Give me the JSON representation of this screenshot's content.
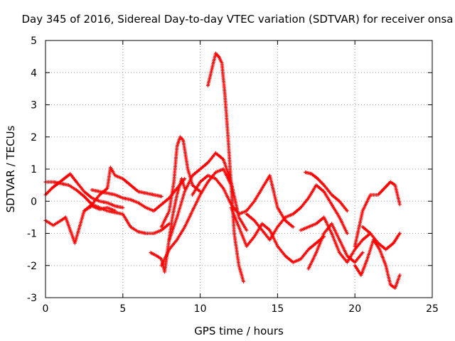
{
  "chart_data": {
    "type": "scatter",
    "title": "Day 345 of 2016, Sidereal Day-to-day VTEC variation (SDTVAR) for receiver onsa",
    "xlabel": "GPS time / hours",
    "ylabel": "SDTVAR / TECUs",
    "xlim": [
      0,
      25
    ],
    "ylim": [
      -3,
      5
    ],
    "xticks": [
      0,
      5,
      10,
      15,
      20,
      25
    ],
    "yticks": [
      -3,
      -2,
      -1,
      0,
      1,
      2,
      3,
      4,
      5
    ],
    "grid": true,
    "marker": "+",
    "series_color": "#ff0000",
    "series": [
      {
        "name": "s1",
        "x": [
          0.0,
          0.5,
          1.0,
          1.5,
          2.0,
          2.5,
          3.0,
          3.5,
          4.0,
          4.5,
          5.0,
          5.5,
          6.0,
          6.5,
          7.0,
          7.5,
          8.0
        ],
        "y": [
          0.6,
          0.6,
          0.55,
          0.5,
          0.35,
          0.15,
          -0.1,
          -0.2,
          -0.3,
          -0.35,
          -0.4,
          -0.8,
          -0.95,
          -1.0,
          -1.0,
          -0.9,
          -0.7
        ]
      },
      {
        "name": "s2",
        "x": [
          0.0,
          0.4,
          0.8,
          1.2,
          1.6,
          2.0,
          2.5,
          3.0,
          3.5,
          4.0,
          4.5,
          5.0
        ],
        "y": [
          0.2,
          0.4,
          0.55,
          0.7,
          0.85,
          0.6,
          0.3,
          0.1,
          0.0,
          -0.05,
          -0.15,
          -0.2
        ]
      },
      {
        "name": "s3",
        "x": [
          0.0,
          0.5,
          1.0,
          1.3,
          1.6,
          1.9,
          2.2,
          2.5,
          3.0,
          3.5,
          4.0,
          4.5
        ],
        "y": [
          -0.6,
          -0.75,
          -0.6,
          -0.5,
          -0.9,
          -1.3,
          -0.8,
          -0.3,
          -0.15,
          -0.25,
          -0.2,
          -0.3
        ]
      },
      {
        "name": "s4",
        "x": [
          2.5,
          3.0,
          3.5,
          4.0,
          4.2,
          4.5,
          5.0,
          5.5,
          6.0,
          6.5,
          7.0,
          7.5
        ],
        "y": [
          -0.3,
          -0.1,
          0.2,
          0.4,
          1.05,
          0.8,
          0.7,
          0.5,
          0.3,
          0.25,
          0.2,
          0.15
        ]
      },
      {
        "name": "s5",
        "x": [
          3.0,
          3.5,
          4.0,
          4.5,
          5.0,
          5.5,
          6.0,
          6.5,
          7.0,
          7.5,
          8.0,
          8.5,
          9.0
        ],
        "y": [
          0.35,
          0.3,
          0.25,
          0.2,
          0.1,
          0.05,
          -0.05,
          -0.2,
          -0.3,
          -0.1,
          0.1,
          0.4,
          0.7
        ]
      },
      {
        "name": "s6",
        "x": [
          6.8,
          7.2,
          7.5,
          7.7,
          7.9,
          8.2,
          8.5,
          8.8,
          9.0
        ],
        "y": [
          -1.6,
          -1.7,
          -1.8,
          -2.2,
          -1.5,
          -0.5,
          0.2,
          0.7,
          0.4
        ]
      },
      {
        "name": "s7",
        "x": [
          7.5,
          8.0,
          8.3,
          8.5,
          8.7,
          8.9,
          9.2,
          9.5,
          10.0
        ],
        "y": [
          -0.8,
          -0.3,
          0.6,
          1.7,
          2.0,
          1.9,
          1.0,
          0.5,
          0.3
        ]
      },
      {
        "name": "s8",
        "x": [
          7.5,
          8.0,
          8.5,
          9.0,
          9.5,
          10.0,
          10.5,
          11.0,
          11.5,
          12.0
        ],
        "y": [
          -2.0,
          -1.5,
          -1.2,
          -0.8,
          -0.3,
          0.2,
          0.6,
          0.9,
          1.0,
          0.5
        ]
      },
      {
        "name": "s9",
        "x": [
          8.0,
          8.5,
          9.0,
          9.5,
          10.0,
          10.5,
          11.0,
          11.5,
          12.0,
          12.5,
          13.0
        ],
        "y": [
          -1.2,
          -0.5,
          0.3,
          0.8,
          1.0,
          1.2,
          1.5,
          1.3,
          0.6,
          -0.5,
          -0.9
        ]
      },
      {
        "name": "s10",
        "x": [
          10.5,
          10.7,
          11.0,
          11.2,
          11.4,
          11.6,
          11.8,
          12.0,
          12.2,
          12.5,
          12.8
        ],
        "y": [
          3.6,
          4.0,
          4.6,
          4.5,
          4.3,
          3.3,
          2.0,
          0.5,
          -1.0,
          -2.0,
          -2.5
        ]
      },
      {
        "name": "s11",
        "x": [
          9.5,
          10.0,
          10.5,
          11.0,
          11.5,
          12.0,
          12.5,
          13.0,
          13.5,
          14.0,
          14.5,
          15.0,
          15.5,
          16.0
        ],
        "y": [
          0.2,
          0.6,
          0.8,
          0.7,
          0.4,
          -0.1,
          -0.4,
          -0.3,
          0.0,
          0.4,
          0.8,
          -0.2,
          -0.6,
          -0.8
        ]
      },
      {
        "name": "s12",
        "x": [
          12.0,
          12.5,
          13.0,
          13.5,
          14.0,
          14.5,
          15.0,
          15.5,
          16.0,
          16.5,
          17.0,
          17.5,
          18.0
        ],
        "y": [
          -0.2,
          -0.8,
          -1.4,
          -1.1,
          -0.7,
          -0.9,
          -1.4,
          -1.7,
          -1.9,
          -1.8,
          -1.5,
          -1.3,
          -1.1
        ]
      },
      {
        "name": "s13",
        "x": [
          13.0,
          13.5,
          14.0,
          14.5,
          15.0,
          15.5,
          16.0,
          16.5,
          17.0,
          17.5,
          18.0,
          18.5,
          19.0,
          19.5
        ],
        "y": [
          -0.4,
          -0.6,
          -0.9,
          -1.2,
          -0.8,
          -0.5,
          -0.4,
          -0.2,
          0.1,
          0.5,
          0.3,
          -0.1,
          -0.5,
          -1.0
        ]
      },
      {
        "name": "s14",
        "x": [
          16.5,
          17.0,
          17.5,
          18.0,
          18.5,
          19.0,
          19.5,
          20.0,
          20.5,
          21.0
        ],
        "y": [
          -0.9,
          -0.8,
          -0.7,
          -0.5,
          -1.0,
          -1.6,
          -1.9,
          -1.5,
          -1.2,
          -1.0
        ]
      },
      {
        "name": "s15",
        "x": [
          16.8,
          17.2,
          17.6,
          18.0,
          18.5,
          19.0,
          19.5
        ],
        "y": [
          0.9,
          0.85,
          0.7,
          0.5,
          0.2,
          0.0,
          -0.3
        ]
      },
      {
        "name": "s16",
        "x": [
          17.0,
          17.5,
          18.0,
          18.5,
          19.0,
          19.5,
          20.0,
          20.5
        ],
        "y": [
          -2.1,
          -1.6,
          -1.0,
          -0.7,
          -1.2,
          -1.7,
          -1.9,
          -1.6
        ]
      },
      {
        "name": "s17",
        "x": [
          20.0,
          20.5,
          21.0,
          21.5,
          22.0,
          22.3,
          22.6,
          22.9
        ],
        "y": [
          -1.4,
          -0.3,
          0.2,
          0.2,
          0.45,
          0.6,
          0.5,
          -0.1
        ]
      },
      {
        "name": "s18",
        "x": [
          20.0,
          20.4,
          20.8,
          21.2,
          21.6,
          22.0,
          22.3,
          22.6,
          22.9
        ],
        "y": [
          -2.0,
          -2.3,
          -1.8,
          -1.2,
          -1.5,
          -2.0,
          -2.6,
          -2.7,
          -2.3
        ]
      },
      {
        "name": "s19",
        "x": [
          20.5,
          21.0,
          21.5,
          22.0,
          22.5,
          22.9
        ],
        "y": [
          -0.8,
          -1.0,
          -1.3,
          -1.5,
          -1.3,
          -1.0
        ]
      }
    ]
  }
}
